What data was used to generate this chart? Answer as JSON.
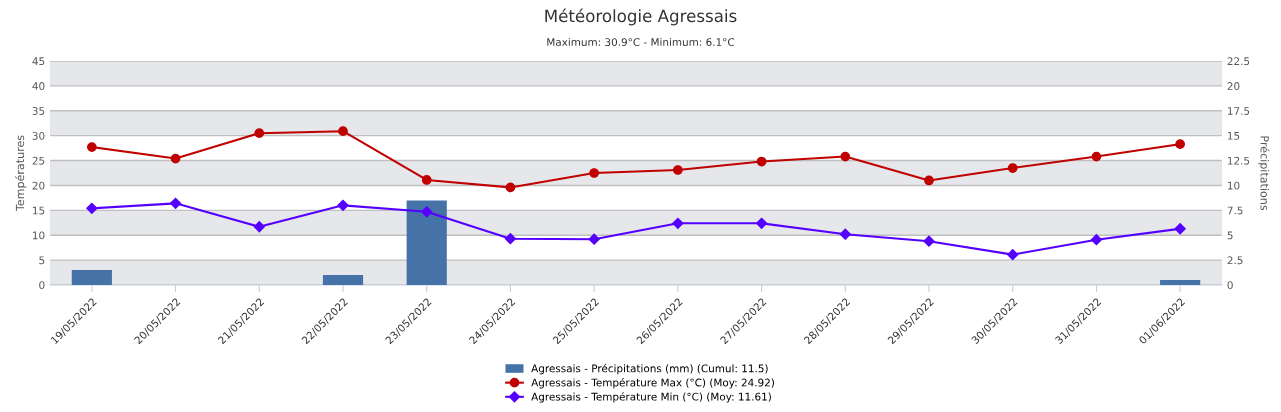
{
  "chart_data": {
    "type": "bar",
    "title": "Météorologie Agressais",
    "subtitle": "Maximum: 30.9°C - Minimum: 6.1°C",
    "ylabel": "Températures",
    "y2label": "Précipitations",
    "categories": [
      "19/05/2022",
      "20/05/2022",
      "21/05/2022",
      "22/05/2022",
      "23/05/2022",
      "24/05/2022",
      "25/05/2022",
      "26/05/2022",
      "27/05/2022",
      "28/05/2022",
      "29/05/2022",
      "30/05/2022",
      "31/05/2022",
      "01/06/2022"
    ],
    "series": [
      {
        "name": "Agressais - Précipitations (mm) (Cumul: 11.5)",
        "axis": "y2",
        "color": "#4572a7",
        "values": [
          1.5,
          0,
          0,
          1.0,
          8.5,
          0,
          0,
          0,
          0,
          0,
          0,
          0,
          0,
          0.5
        ]
      },
      {
        "name": "Agressais - Température Max (°C) (Moy: 24.92)",
        "type": "line",
        "marker": "circle",
        "color": "#c00000",
        "values": [
          27.7,
          25.4,
          30.5,
          30.9,
          21.1,
          19.6,
          22.5,
          23.1,
          24.8,
          25.8,
          21.0,
          23.5,
          25.8,
          28.3
        ]
      },
      {
        "name": "Agressais - Température Min (°C) (Moy: 11.61)",
        "type": "line",
        "marker": "diamond",
        "color": "#5500ff",
        "values": [
          15.4,
          16.4,
          11.7,
          16.0,
          14.7,
          9.3,
          9.2,
          12.4,
          12.4,
          10.2,
          8.8,
          6.1,
          9.1,
          11.3
        ]
      }
    ],
    "ylim": [
      0,
      45
    ],
    "yticks": [
      0,
      5,
      10,
      15,
      20,
      25,
      30,
      35,
      40,
      45
    ],
    "y2lim": [
      0,
      22.5
    ],
    "y2ticks": [
      0,
      2.5,
      5,
      7.5,
      10,
      12.5,
      15,
      17.5,
      20,
      22.5
    ],
    "bands": [
      {
        "axis": "y",
        "from": 0,
        "to": 5,
        "color": "#e6e7eb"
      },
      {
        "axis": "y",
        "from": 10,
        "to": 15,
        "color": "#e6e7eb"
      },
      {
        "axis": "y",
        "from": 20,
        "to": 25,
        "color": "#e6e7eb"
      },
      {
        "axis": "y",
        "from": 30,
        "to": 35,
        "color": "#e6e7eb"
      },
      {
        "axis": "y",
        "from": 40,
        "to": 45,
        "color": "#e6e7eb"
      }
    ],
    "grid": "y",
    "legend": "bottom"
  }
}
